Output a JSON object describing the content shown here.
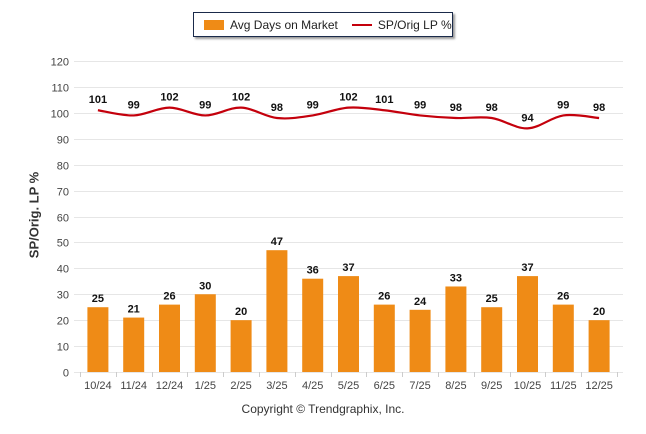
{
  "chart_data": {
    "type": "bar+line",
    "categories": [
      "10/24",
      "11/24",
      "12/24",
      "1/25",
      "2/25",
      "3/25",
      "4/25",
      "5/25",
      "6/25",
      "7/25",
      "8/25",
      "9/25",
      "10/25",
      "11/25",
      "12/25"
    ],
    "series": [
      {
        "name": "Avg Days on Market",
        "type": "bar",
        "color": "#ef8b16",
        "values": [
          25,
          21,
          26,
          30,
          20,
          47,
          36,
          37,
          26,
          24,
          33,
          25,
          37,
          26,
          20
        ]
      },
      {
        "name": "SP/Orig LP %",
        "type": "line",
        "color": "#c4000c",
        "values": [
          101,
          99,
          102,
          99,
          102,
          98,
          99,
          102,
          101,
          99,
          98,
          98,
          94,
          99,
          98
        ]
      }
    ],
    "ylabel": "SP/Orig. LP %",
    "ylim": [
      0,
      120
    ],
    "yticks": [
      "0",
      "10",
      "20",
      "30",
      "40",
      "50",
      "60",
      "70",
      "80",
      "90",
      "100",
      "110",
      "120"
    ],
    "grid": true,
    "legend": "top-center"
  },
  "legend": {
    "bar_label": "Avg Days on Market",
    "line_label": "SP/Orig LP %"
  },
  "copyright": "Copyright © Trendgraphix, Inc."
}
